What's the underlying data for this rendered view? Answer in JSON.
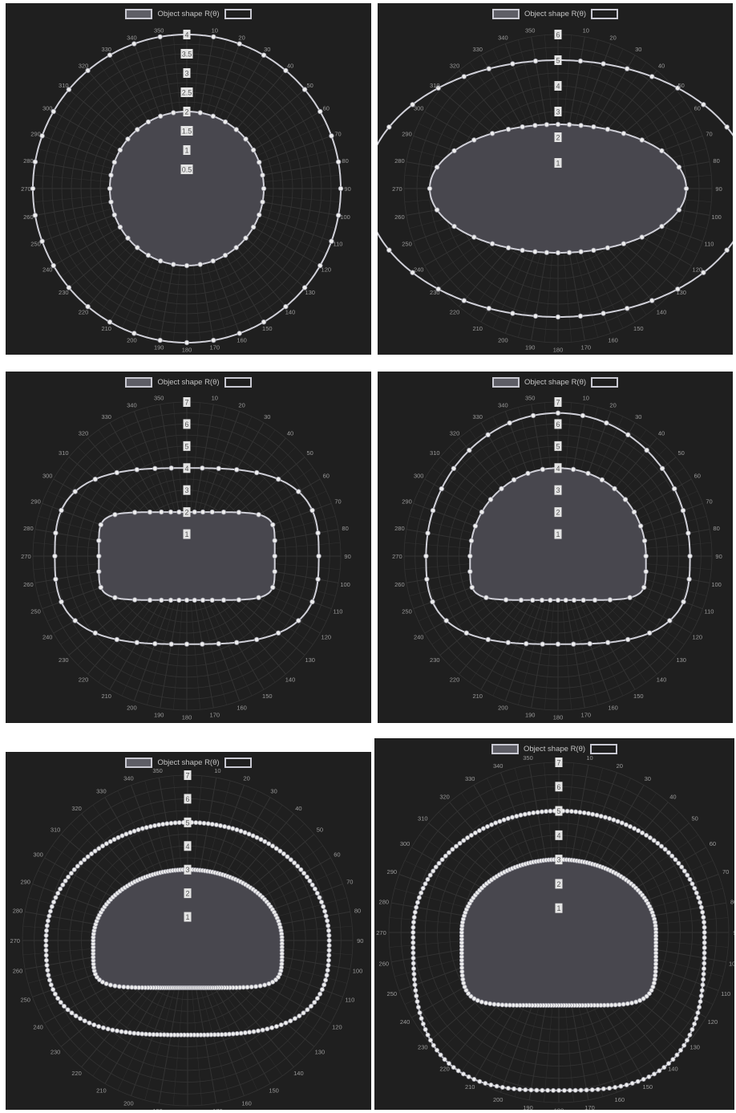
{
  "colors": {
    "background": "#1f1f1f",
    "grid": "#333333",
    "fill": "#48474e",
    "line": "#d0d0d8",
    "marker": "#eeeeee",
    "angle_label": "#9a9a9a",
    "radial_label_bg": "#e4e4e4",
    "radial_label_text": "#555555"
  },
  "legend_label": "Object shape R(θ)",
  "chart_data": [
    {
      "type": "polar",
      "legend": "Object shape R(θ)",
      "angle_ticks": [
        0,
        10,
        20,
        30,
        40,
        50,
        60,
        70,
        80,
        90,
        100,
        110,
        120,
        130,
        140,
        150,
        160,
        170,
        180,
        190,
        200,
        210,
        220,
        230,
        240,
        250,
        260,
        270,
        280,
        290,
        300,
        310,
        320,
        330,
        340,
        350
      ],
      "angle_labels": [
        "",
        "10",
        "20",
        "30",
        "40",
        "50",
        "60",
        "70",
        "80",
        "90",
        "100",
        "110",
        "120",
        "130",
        "140",
        "150",
        "160",
        "170",
        "180",
        "190",
        "200",
        "210",
        "220",
        "230",
        "240",
        "250",
        "260",
        "270",
        "280",
        "290",
        "300",
        "310",
        "320",
        "330",
        "340",
        "350"
      ],
      "radial_ticks": [
        0.5,
        1,
        1.5,
        2,
        2.5,
        3,
        3.5,
        4
      ],
      "radial_labels": [
        "0.5",
        "1",
        "1.5",
        "2",
        "2.5",
        "3",
        "3.5",
        "4"
      ],
      "rmax": 4,
      "grid": true,
      "legend_position": "top",
      "series": [
        {
          "shape": "ellipse",
          "a": 2,
          "b": 2,
          "markers": 36,
          "filled": true
        },
        {
          "shape": "ellipse",
          "a": 4,
          "b": 4,
          "markers": 36,
          "filled": false
        }
      ]
    },
    {
      "type": "polar",
      "legend": "Object shape R(θ)",
      "angle_ticks": [
        0,
        10,
        20,
        30,
        40,
        50,
        60,
        70,
        80,
        90,
        100,
        110,
        120,
        130,
        140,
        150,
        160,
        170,
        180,
        190,
        200,
        210,
        220,
        230,
        240,
        250,
        260,
        270,
        280,
        290,
        300,
        310,
        320,
        330,
        340,
        350
      ],
      "angle_labels": [
        "",
        "10",
        "20",
        "30",
        "40",
        "50",
        "60",
        "70",
        "80",
        "90",
        "100",
        "110",
        "120",
        "130",
        "140",
        "150",
        "160",
        "170",
        "180",
        "190",
        "200",
        "210",
        "220",
        "230",
        "240",
        "250",
        "260",
        "270",
        "280",
        "290",
        "300",
        "310",
        "320",
        "330",
        "340",
        "350"
      ],
      "radial_ticks": [
        1,
        2,
        3,
        4,
        5,
        6
      ],
      "radial_labels": [
        "1",
        "2",
        "3",
        "4",
        "5",
        "6"
      ],
      "rmax": 6,
      "grid": true,
      "legend_position": "top",
      "series": [
        {
          "shape": "ellipse",
          "a": 5,
          "b": 2.5,
          "markers": 36,
          "filled": true
        },
        {
          "shape": "ellipse",
          "a": 7.5,
          "b": 5,
          "markers": 36,
          "filled": false
        }
      ]
    },
    {
      "type": "polar",
      "legend": "Object shape R(θ)",
      "angle_ticks": [
        0,
        10,
        20,
        30,
        40,
        50,
        60,
        70,
        80,
        90,
        100,
        110,
        120,
        130,
        140,
        150,
        160,
        170,
        180,
        190,
        200,
        210,
        220,
        230,
        240,
        250,
        260,
        270,
        280,
        290,
        300,
        310,
        320,
        330,
        340,
        350
      ],
      "angle_labels": [
        "",
        "10",
        "20",
        "30",
        "40",
        "50",
        "60",
        "70",
        "80",
        "90",
        "100",
        "110",
        "120",
        "130",
        "140",
        "150",
        "160",
        "170",
        "180",
        "190",
        "200",
        "210",
        "220",
        "230",
        "240",
        "250",
        "260",
        "270",
        "280",
        "290",
        "300",
        "310",
        "320",
        "330",
        "340",
        "350"
      ],
      "radial_ticks": [
        1,
        2,
        3,
        4,
        5,
        6,
        7
      ],
      "radial_labels": [
        "1",
        "2",
        "3",
        "4",
        "5",
        "6",
        "7"
      ],
      "rmax": 7,
      "grid": true,
      "legend_position": "top",
      "series": [
        {
          "shape": "superellipse",
          "a": 4,
          "b": 2,
          "n": 6,
          "markers": 36,
          "filled": true
        },
        {
          "shape": "superellipse",
          "a": 6,
          "b": 4,
          "n": 3,
          "markers": 36,
          "filled": false
        }
      ]
    },
    {
      "type": "polar",
      "legend": "Object shape R(θ)",
      "angle_ticks": [
        0,
        10,
        20,
        30,
        40,
        50,
        60,
        70,
        80,
        90,
        100,
        110,
        120,
        130,
        140,
        150,
        160,
        170,
        180,
        190,
        200,
        210,
        220,
        230,
        240,
        250,
        260,
        270,
        280,
        290,
        300,
        310,
        320,
        330,
        340,
        350
      ],
      "angle_labels": [
        "",
        "10",
        "20",
        "30",
        "40",
        "50",
        "60",
        "70",
        "80",
        "90",
        "100",
        "110",
        "120",
        "130",
        "140",
        "150",
        "160",
        "170",
        "180",
        "190",
        "200",
        "210",
        "220",
        "230",
        "240",
        "250",
        "260",
        "270",
        "280",
        "290",
        "300",
        "310",
        "320",
        "330",
        "340",
        "350"
      ],
      "radial_ticks": [
        1,
        2,
        3,
        4,
        5,
        6,
        7
      ],
      "radial_labels": [
        "1",
        "2",
        "3",
        "4",
        "5",
        "6",
        "7"
      ],
      "rmax": 7,
      "grid": true,
      "legend_position": "top",
      "series": [
        {
          "shape": "dome",
          "a": 4,
          "top": 4,
          "bottom": 2,
          "n": 6,
          "markers": 36,
          "filled": true
        },
        {
          "shape": "dome",
          "a": 6,
          "top": 6.5,
          "bottom": 4,
          "n": 3,
          "markers": 36,
          "filled": false
        }
      ]
    },
    {
      "type": "polar",
      "legend": "Object shape R(θ)",
      "angle_ticks": [
        0,
        10,
        20,
        30,
        40,
        50,
        60,
        70,
        80,
        90,
        100,
        110,
        120,
        130,
        140,
        150,
        160,
        170,
        180,
        190,
        200,
        210,
        220,
        230,
        240,
        250,
        260,
        270,
        280,
        290,
        300,
        310,
        320,
        330,
        340,
        350
      ],
      "angle_labels": [
        "",
        "10",
        "20",
        "30",
        "40",
        "50",
        "60",
        "70",
        "80",
        "90",
        "100",
        "110",
        "120",
        "130",
        "140",
        "150",
        "160",
        "170",
        "180",
        "190",
        "200",
        "210",
        "220",
        "230",
        "240",
        "250",
        "260",
        "270",
        "280",
        "290",
        "300",
        "310",
        "320",
        "330",
        "340",
        "350"
      ],
      "radial_ticks": [
        1,
        2,
        3,
        4,
        5,
        6,
        7
      ],
      "radial_labels": [
        "1",
        "2",
        "3",
        "4",
        "5",
        "6",
        "7"
      ],
      "rmax": 7,
      "grid": true,
      "legend_position": "top",
      "series": [
        {
          "shape": "dome",
          "a": 4,
          "top": 3,
          "bottom": 2,
          "n": 6,
          "markers": 180,
          "filled": true
        },
        {
          "shape": "dome",
          "a": 6,
          "top": 5,
          "bottom": 4,
          "n": 3,
          "markers": 180,
          "filled": false
        }
      ]
    },
    {
      "type": "polar",
      "legend": "Object shape R(θ)",
      "angle_ticks": [
        0,
        10,
        20,
        30,
        40,
        50,
        60,
        70,
        80,
        90,
        100,
        110,
        120,
        130,
        140,
        150,
        160,
        170,
        180,
        190,
        200,
        210,
        220,
        230,
        240,
        250,
        260,
        270,
        280,
        290,
        300,
        310,
        320,
        330,
        340,
        350
      ],
      "angle_labels": [
        "",
        "10",
        "20",
        "30",
        "40",
        "50",
        "60",
        "70",
        "80",
        "90",
        "100",
        "110",
        "120",
        "130",
        "140",
        "150",
        "160",
        "170",
        "180",
        "190",
        "200",
        "210",
        "220",
        "230",
        "240",
        "250",
        "260",
        "270",
        "280",
        "290",
        "300",
        "310",
        "320",
        "330",
        "340",
        "350"
      ],
      "radial_ticks": [
        1,
        2,
        3,
        4,
        5,
        6,
        7
      ],
      "radial_labels": [
        "1",
        "2",
        "3",
        "4",
        "5",
        "6",
        "7"
      ],
      "rmax": 7,
      "grid": true,
      "legend_position": "top",
      "series": [
        {
          "shape": "dome",
          "a": 4,
          "top": 3,
          "bottom": 3,
          "n": 6,
          "markers": 180,
          "filled": true
        },
        {
          "shape": "dome",
          "a": 6,
          "top": 5,
          "bottom": 6.5,
          "n": 3,
          "markers": 180,
          "filled": false
        }
      ]
    }
  ]
}
